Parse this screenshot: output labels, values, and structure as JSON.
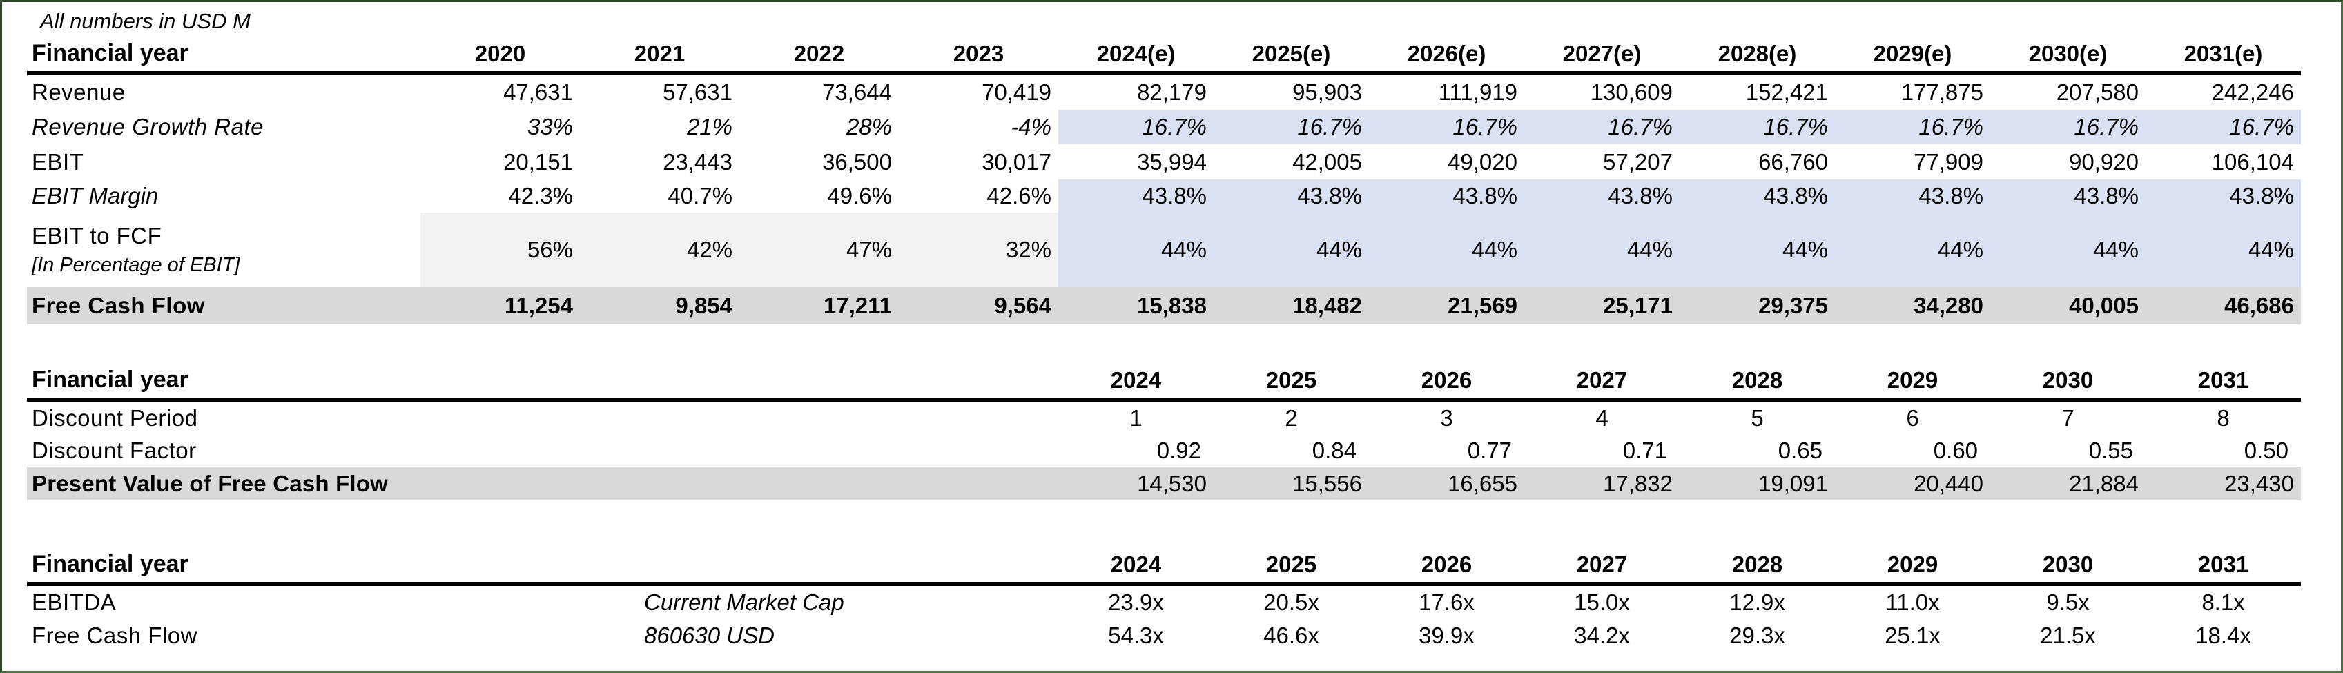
{
  "units_note": "All numbers in USD M",
  "colors": {
    "forecast_highlight": "#d9e1f2",
    "historic_fcf_conversion": "#f2f2f2",
    "total_row": "#d9d9d9",
    "frame_border": "#4c6f46",
    "text": "#000000"
  },
  "table1": {
    "header_label": "Financial year",
    "years": [
      "2020",
      "2021",
      "2022",
      "2023",
      "2024(e)",
      "2025(e)",
      "2026(e)",
      "2027(e)",
      "2028(e)",
      "2029(e)",
      "2030(e)",
      "2031(e)"
    ],
    "rows": {
      "revenue": {
        "label": "Revenue",
        "values": [
          "47,631",
          "57,631",
          "73,644",
          "70,419",
          "82,179",
          "95,903",
          "111,919",
          "130,609",
          "152,421",
          "177,875",
          "207,580",
          "242,246"
        ]
      },
      "revenue_growth": {
        "label": "Revenue Growth Rate",
        "values": [
          "33%",
          "21%",
          "28%",
          "-4%",
          "16.7%",
          "16.7%",
          "16.7%",
          "16.7%",
          "16.7%",
          "16.7%",
          "16.7%",
          "16.7%"
        ]
      },
      "ebit": {
        "label": "EBIT",
        "values": [
          "20,151",
          "23,443",
          "36,500",
          "30,017",
          "35,994",
          "42,005",
          "49,020",
          "57,207",
          "66,760",
          "77,909",
          "90,920",
          "106,104"
        ]
      },
      "ebit_margin": {
        "label": "EBIT Margin",
        "values": [
          "42.3%",
          "40.7%",
          "49.6%",
          "42.6%",
          "43.8%",
          "43.8%",
          "43.8%",
          "43.8%",
          "43.8%",
          "43.8%",
          "43.8%",
          "43.8%"
        ]
      },
      "ebit_to_fcf": {
        "label": "EBIT to FCF",
        "label2": "[In Percentage of EBIT]",
        "values": [
          "56%",
          "42%",
          "47%",
          "32%",
          "44%",
          "44%",
          "44%",
          "44%",
          "44%",
          "44%",
          "44%",
          "44%"
        ]
      },
      "free_cash_flow": {
        "label": "Free Cash Flow",
        "values": [
          "11,254",
          "9,854",
          "17,211",
          "9,564",
          "15,838",
          "18,482",
          "21,569",
          "25,171",
          "29,375",
          "34,280",
          "40,005",
          "46,686"
        ]
      }
    }
  },
  "table2": {
    "header_label": "Financial year",
    "years": [
      "2024",
      "2025",
      "2026",
      "2027",
      "2028",
      "2029",
      "2030",
      "2031"
    ],
    "rows": {
      "discount_period": {
        "label": "Discount Period",
        "values": [
          "1",
          "2",
          "3",
          "4",
          "5",
          "6",
          "7",
          "8"
        ]
      },
      "discount_factor": {
        "label": "Discount Factor",
        "values": [
          "0.92",
          "0.84",
          "0.77",
          "0.71",
          "0.65",
          "0.60",
          "0.55",
          "0.50"
        ]
      },
      "pv_fcf": {
        "label": "Present Value of Free Cash Flow",
        "values": [
          "14,530",
          "15,556",
          "16,655",
          "17,832",
          "19,091",
          "20,440",
          "21,884",
          "23,430"
        ]
      }
    }
  },
  "table3": {
    "header_label": "Financial year",
    "years": [
      "2024",
      "2025",
      "2026",
      "2027",
      "2028",
      "2029",
      "2030",
      "2031"
    ],
    "rows": {
      "ebitda_multiple": {
        "label": "EBITDA",
        "note": "Current Market Cap",
        "values": [
          "23.9x",
          "20.5x",
          "17.6x",
          "15.0x",
          "12.9x",
          "11.0x",
          "9.5x",
          "8.1x"
        ]
      },
      "fcf_multiple": {
        "label": "Free Cash Flow",
        "note": "860630  USD",
        "values": [
          "54.3x",
          "46.6x",
          "39.9x",
          "34.2x",
          "29.3x",
          "25.1x",
          "21.5x",
          "18.4x"
        ]
      }
    }
  }
}
